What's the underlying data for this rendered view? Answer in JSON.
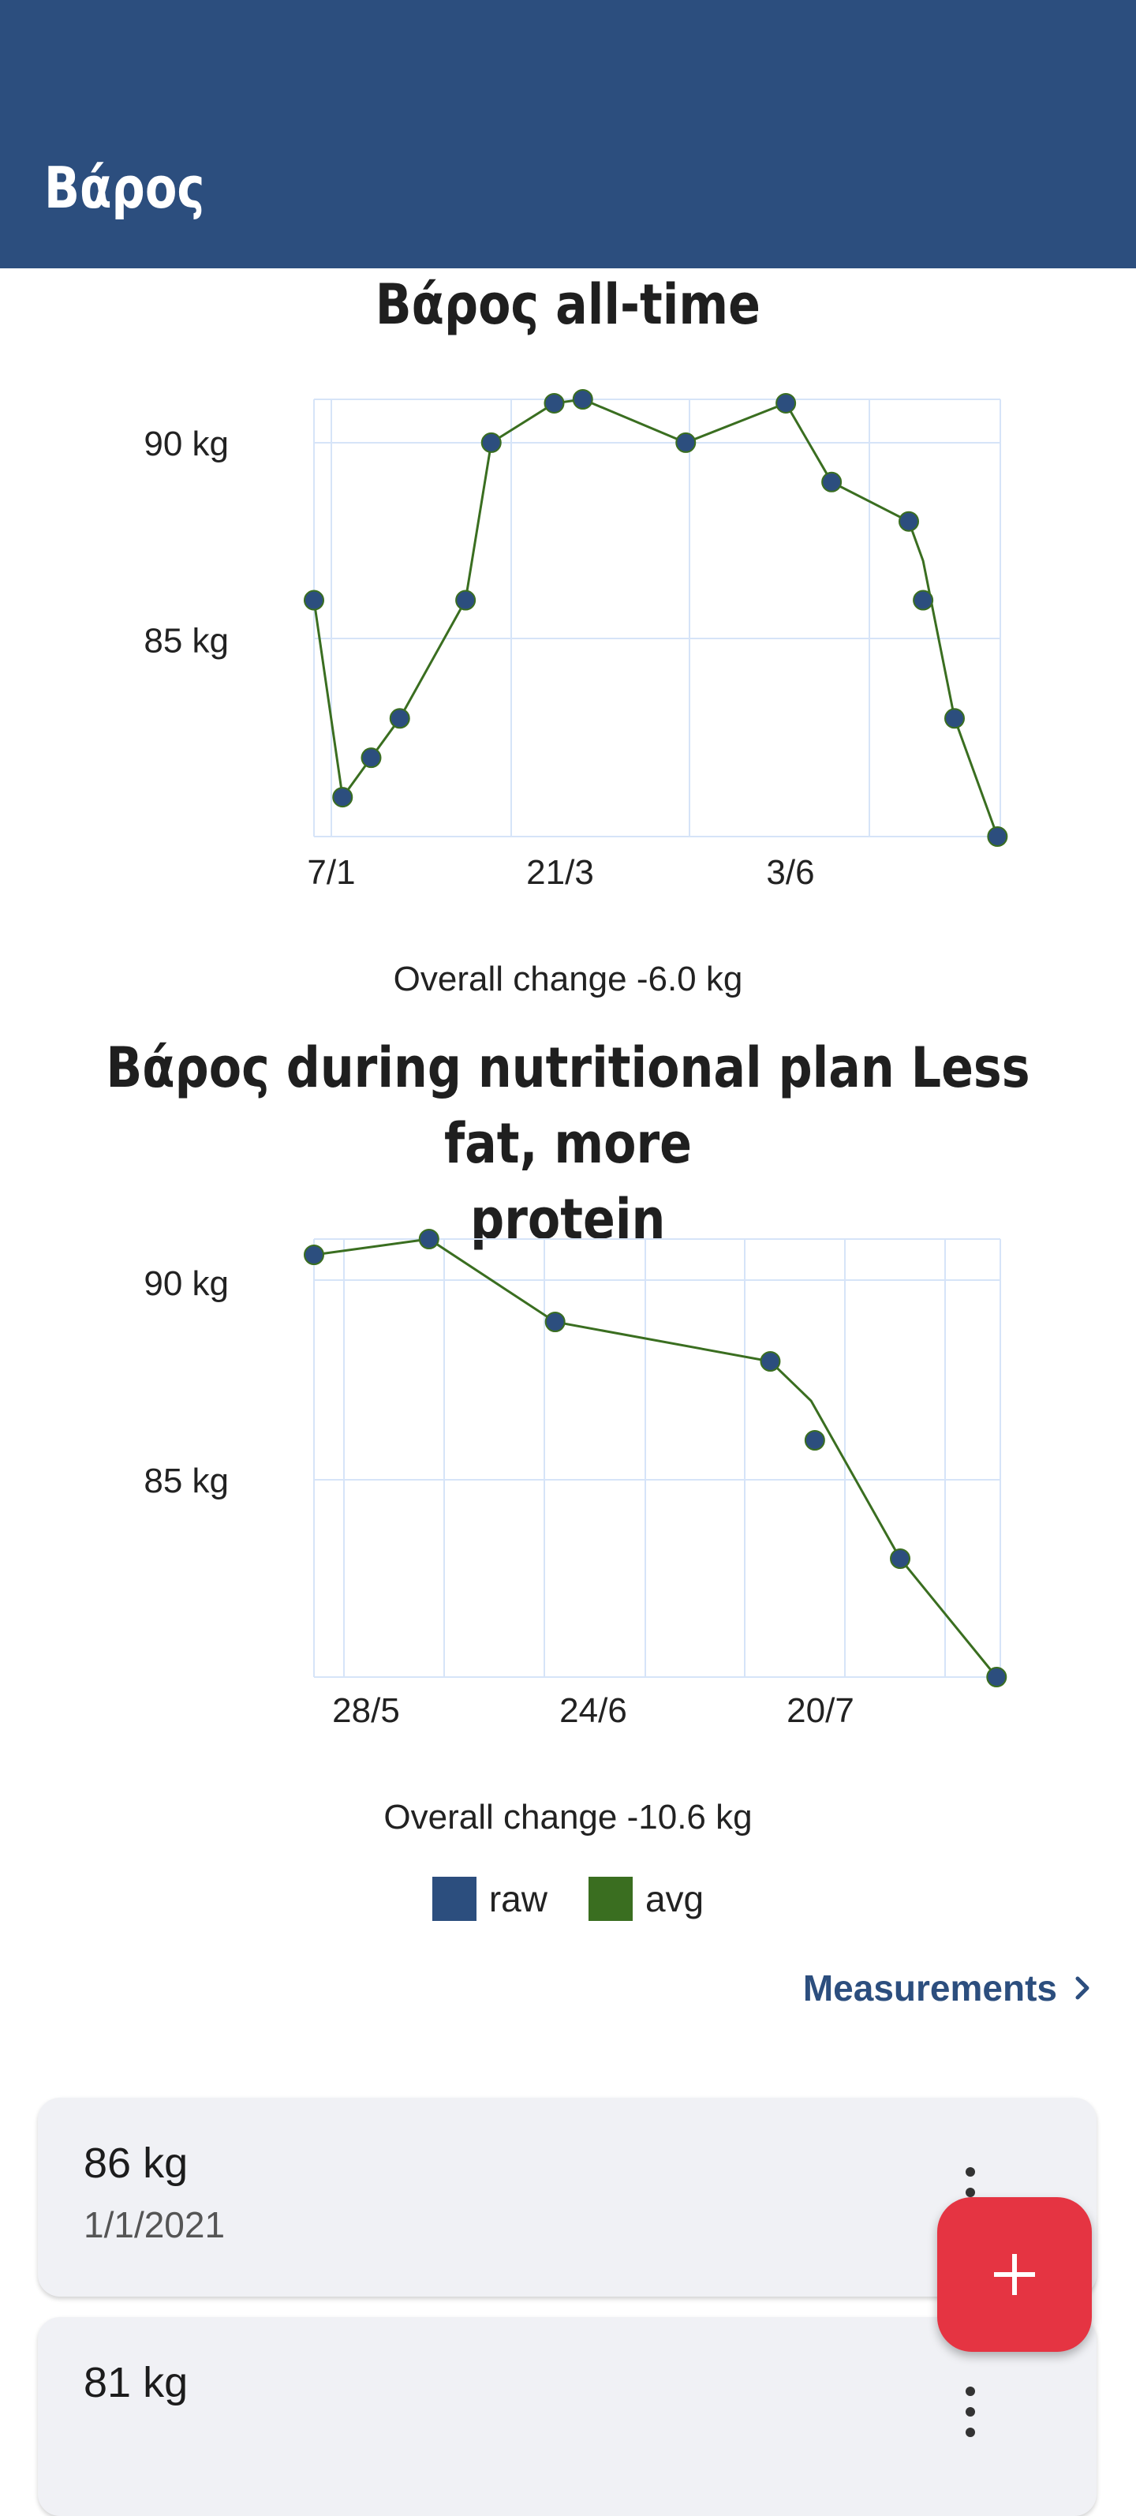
{
  "appbar": {
    "title": "Βάρος"
  },
  "charts": [
    {
      "title": "Βάρος all-time",
      "overall_change": "Overall change -6.0 kg"
    },
    {
      "title_line1": "Βάρος during nutritional plan Less fat, more",
      "title_line2": "protein",
      "overall_change": "Overall change -10.6 kg"
    }
  ],
  "legend": {
    "raw": "raw",
    "avg": "avg"
  },
  "measurements_link": {
    "label": "Measurements",
    "icon": "chevron-right-icon"
  },
  "measurements": [
    {
      "value": "86 kg",
      "date": "1/1/2021",
      "menu_icon": "more-vert-icon"
    },
    {
      "value": "81 kg",
      "date": "",
      "menu_icon": "more-vert-icon"
    }
  ],
  "fab": {
    "icon": "plus-icon"
  },
  "colors": {
    "appbar": "#2c4e7e",
    "raw": "#2c4e7e",
    "avg": "#3a6e20",
    "grid": "#d6e4f8",
    "fab": "#e53442"
  },
  "chart_data": [
    {
      "type": "line",
      "title": "Βάρος all-time",
      "xlabel": "",
      "ylabel": "",
      "x_tick_labels": [
        "7/1",
        "21/3",
        "3/6"
      ],
      "y_tick_labels": [
        "85 kg",
        "90 kg"
      ],
      "y_ticks": [
        85,
        90
      ],
      "ylim": [
        80,
        91.1
      ],
      "xlim": [
        0,
        24
      ],
      "grid": true,
      "series": [
        {
          "name": "raw",
          "style": "points",
          "x": [
            0,
            1,
            2,
            3,
            5.3,
            6.2,
            8.4,
            9.4,
            13,
            16.5,
            18.1,
            20.8,
            21.3,
            22.4,
            23.9
          ],
          "y": [
            86,
            81,
            82,
            83,
            86,
            90,
            91,
            91.1,
            90,
            91,
            89,
            88,
            86,
            83,
            80
          ]
        },
        {
          "name": "avg",
          "style": "line",
          "x": [
            0,
            1,
            2,
            3,
            5.3,
            6.2,
            8.4,
            9.4,
            13,
            16.5,
            18.1,
            20.8,
            21.3,
            22.4,
            23.9
          ],
          "y": [
            86,
            81,
            82,
            83,
            86,
            90,
            91,
            91.1,
            90,
            91,
            89,
            88,
            87,
            83,
            80
          ]
        }
      ]
    },
    {
      "type": "line",
      "title": "Βάρος during nutritional plan Less fat, more protein",
      "xlabel": "",
      "ylabel": "",
      "x_tick_labels": [
        "28/5",
        "24/6",
        "20/7"
      ],
      "y_tick_labels": [
        "85 kg",
        "90 kg"
      ],
      "y_ticks": [
        85,
        90
      ],
      "ylim": [
        80,
        91.1
      ],
      "xlim": [
        0,
        18.5
      ],
      "grid": true,
      "series": [
        {
          "name": "raw",
          "style": "points",
          "x": [
            0,
            3.1,
            6.5,
            12.3,
            13.5,
            15.8,
            18.4
          ],
          "y": [
            90.7,
            91.1,
            89,
            88,
            86,
            83,
            80
          ]
        },
        {
          "name": "avg",
          "style": "line",
          "x": [
            0,
            3.1,
            6.5,
            12.3,
            13.4,
            15.8,
            18.4
          ],
          "y": [
            90.7,
            91.1,
            89,
            88,
            87,
            83,
            80
          ]
        }
      ]
    }
  ]
}
